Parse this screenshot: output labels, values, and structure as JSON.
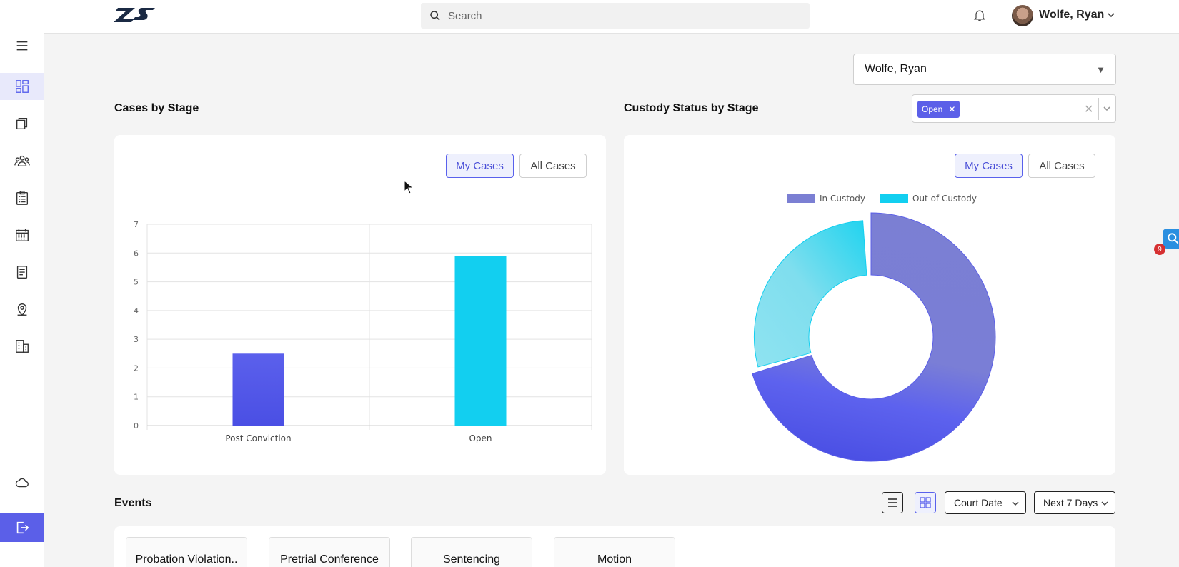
{
  "header": {
    "search_placeholder": "Search",
    "user_name": "Wolfe, Ryan"
  },
  "sidebar": {
    "items": [
      {
        "icon": "menu-icon"
      },
      {
        "icon": "dashboard-icon",
        "active": true
      },
      {
        "icon": "cases-icon"
      },
      {
        "icon": "people-icon"
      },
      {
        "icon": "checklist-icon"
      },
      {
        "icon": "calendar-icon"
      },
      {
        "icon": "document-icon"
      },
      {
        "icon": "location-icon"
      },
      {
        "icon": "building-icon"
      },
      {
        "icon": "cloud-icon"
      },
      {
        "icon": "logout-icon"
      }
    ]
  },
  "filters": {
    "user_select": "Wolfe, Ryan",
    "stage_tag": "Open"
  },
  "cases_by_stage": {
    "title": "Cases by Stage",
    "toggle_my": "My Cases",
    "toggle_all": "All Cases"
  },
  "custody_by_stage": {
    "title": "Custody Status by Stage",
    "toggle_my": "My Cases",
    "toggle_all": "All Cases"
  },
  "chart_data": [
    {
      "type": "bar",
      "categories": [
        "Post Conviction",
        "Open"
      ],
      "values": [
        2.5,
        5.9
      ],
      "colors": [
        "#5b5fe8",
        "#12cff0"
      ],
      "ylim": [
        0,
        7
      ],
      "yticks": [
        0,
        1,
        2,
        3,
        4,
        5,
        6,
        7
      ],
      "grid": true
    },
    {
      "type": "pie",
      "donut": true,
      "legend_position": "top",
      "series": [
        {
          "name": "In Custody",
          "value": 5.9,
          "color": "#5b5fe8"
        },
        {
          "name": "Out of Custody",
          "value": 2.5,
          "color": "#12cff0"
        }
      ]
    }
  ],
  "events": {
    "title": "Events",
    "sort_select": "Court Date",
    "range_select": "Next 7 Days",
    "cards": [
      "Probation Violation..",
      "Pretrial Conference",
      "Sentencing",
      "Motion"
    ]
  },
  "widget_badge": "9",
  "colors": {
    "accent": "#5b5fe8",
    "cyan": "#12cff0"
  }
}
